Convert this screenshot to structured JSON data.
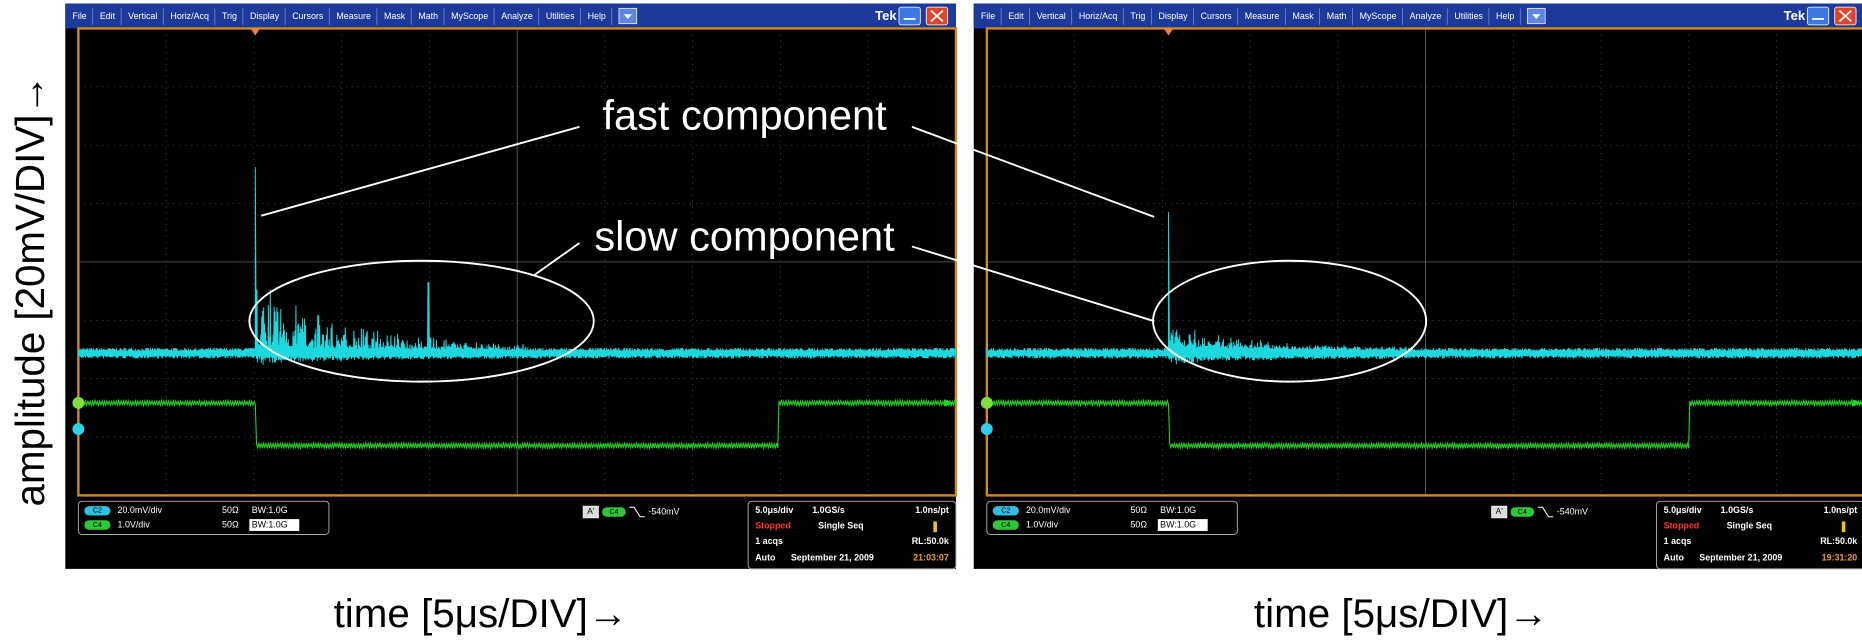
{
  "y_axis_label": "amplitude [20mV/DIV]→",
  "annotations": {
    "fast": "fast component",
    "slow": "slow component"
  },
  "panels": [
    {
      "menu": [
        "File",
        "Edit",
        "Vertical",
        "Horiz/Acq",
        "Trig",
        "Display",
        "Cursors",
        "Measure",
        "Mask",
        "Math",
        "MyScope",
        "Analyze",
        "Utilities",
        "Help"
      ],
      "brand": "Tek",
      "channels": [
        {
          "badge": "C2",
          "scale": "20.0mV/div",
          "impedance": "50Ω",
          "bandwidth": "BW:1.0G"
        },
        {
          "badge": "C4",
          "scale": "1.0V/div",
          "impedance": "50Ω",
          "bandwidth": "BW:1.0G"
        }
      ],
      "trigger": {
        "mode": "A'",
        "badge": "C4",
        "level": "-540mV"
      },
      "timebase": {
        "scale": "5.0μs/div",
        "rate": "1.0GS/s",
        "resolution": "1.0ns/pt",
        "state": "Stopped",
        "sequence": "Single Seq",
        "acqs": "1 acqs",
        "record": "RL:50.0k",
        "auto": "Auto",
        "date": "September 21, 2009",
        "time": "21:03:07"
      },
      "x_axis_label": "time [5μs/DIV]→"
    },
    {
      "menu": [
        "File",
        "Edit",
        "Vertical",
        "Horiz/Acq",
        "Trig",
        "Display",
        "Cursors",
        "Measure",
        "Mask",
        "Math",
        "MyScope",
        "Analyze",
        "Utilities",
        "Help"
      ],
      "brand": "Tek",
      "channels": [
        {
          "badge": "C2",
          "scale": "20.0mV/div",
          "impedance": "50Ω",
          "bandwidth": "BW:1.0G"
        },
        {
          "badge": "C4",
          "scale": "1.0V/div",
          "impedance": "50Ω",
          "bandwidth": "BW:1.0G"
        }
      ],
      "trigger": {
        "mode": "A'",
        "badge": "C4",
        "level": "-540mV"
      },
      "timebase": {
        "scale": "5.0μs/div",
        "rate": "1.0GS/s",
        "resolution": "1.0ns/pt",
        "state": "Stopped",
        "sequence": "Single Seq",
        "acqs": "1 acqs",
        "record": "RL:50.0k",
        "auto": "Auto",
        "date": "September 21, 2009",
        "time": "19:31:20"
      },
      "x_axis_label": "time [5μs/DIV]→"
    }
  ]
}
